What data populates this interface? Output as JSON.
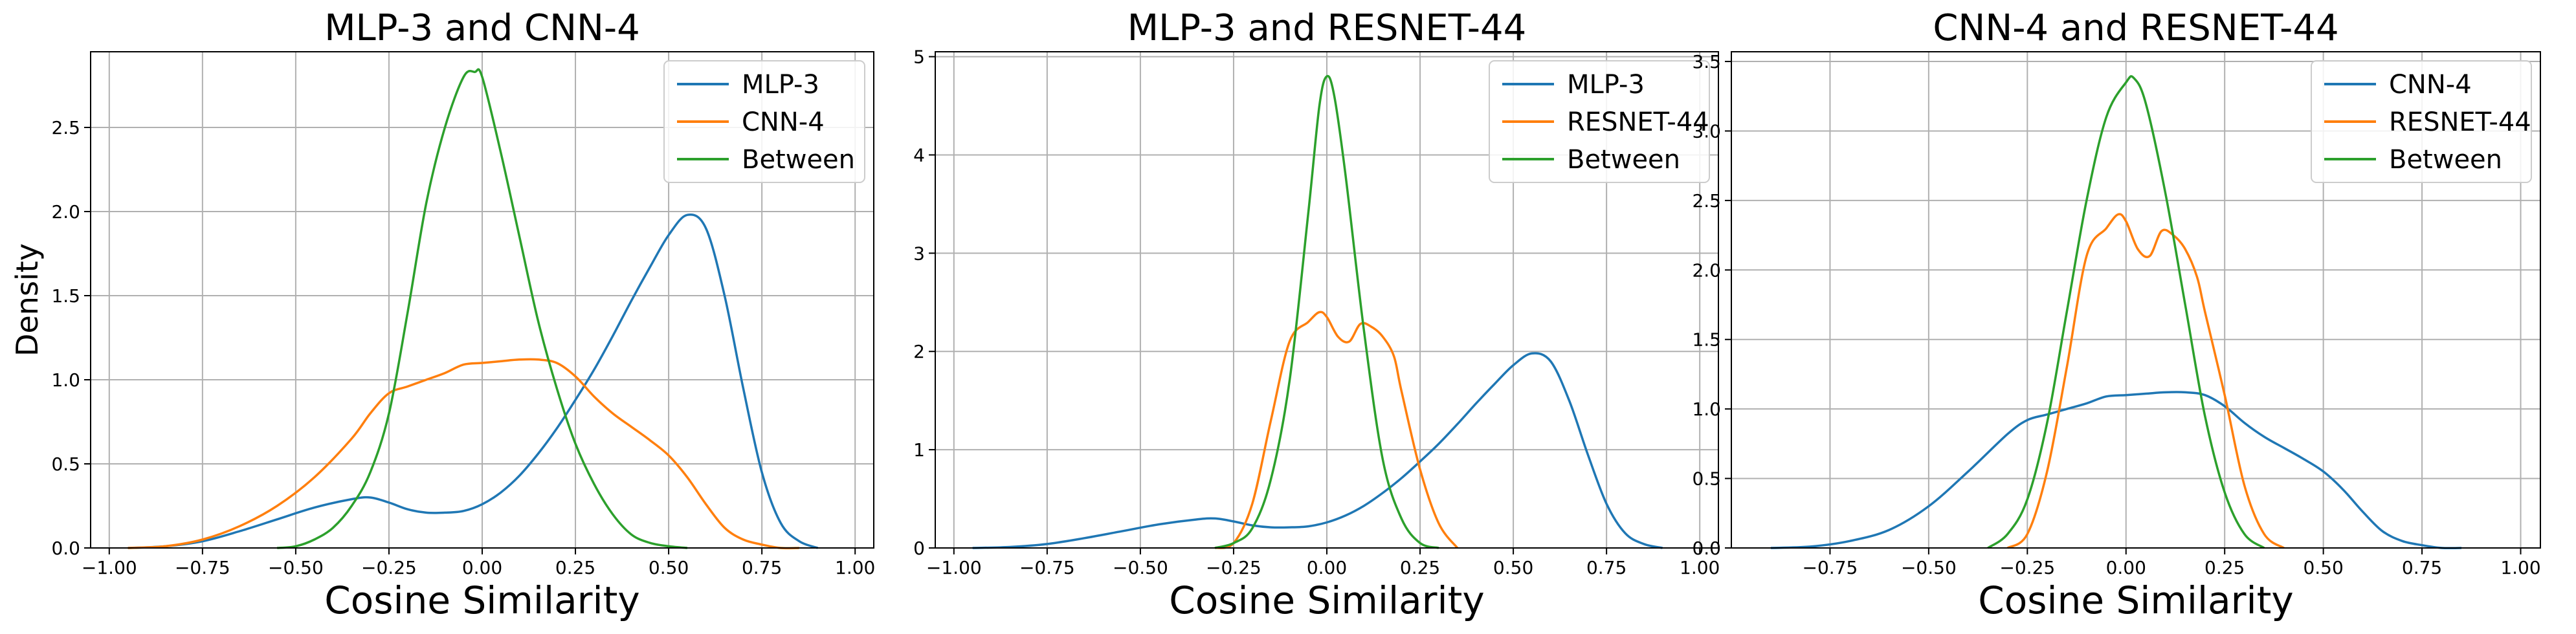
{
  "chart_data": [
    {
      "type": "line",
      "title": "MLP-3 and CNN-4",
      "xlabel": "Cosine Similarity",
      "ylabel": "Density",
      "xlim": [
        -1.05,
        1.05
      ],
      "ylim": [
        0,
        2.95
      ],
      "xticks": [
        -1.0,
        -0.75,
        -0.5,
        -0.25,
        0.0,
        0.25,
        0.5,
        0.75,
        1.0
      ],
      "xtick_labels": [
        "−1.00",
        "−0.75",
        "−0.50",
        "−0.25",
        "0.00",
        "0.25",
        "0.50",
        "0.75",
        "1.00"
      ],
      "yticks": [
        0,
        0.5,
        1.0,
        1.5,
        2.0,
        2.5
      ],
      "ytick_labels": [
        "0.0",
        "0.5",
        "1.0",
        "1.5",
        "2.0",
        "2.5"
      ],
      "grid": true,
      "legend_position": "top-right",
      "series": [
        {
          "name": "MLP-3",
          "color": "#1f77b4",
          "x": [
            -0.95,
            -0.85,
            -0.75,
            -0.65,
            -0.55,
            -0.45,
            -0.35,
            -0.3,
            -0.25,
            -0.2,
            -0.15,
            -0.1,
            -0.05,
            0.0,
            0.05,
            0.1,
            0.15,
            0.2,
            0.25,
            0.3,
            0.35,
            0.4,
            0.45,
            0.5,
            0.55,
            0.6,
            0.65,
            0.7,
            0.75,
            0.8,
            0.85,
            0.9
          ],
          "y": [
            0.0,
            0.01,
            0.04,
            0.1,
            0.17,
            0.24,
            0.29,
            0.3,
            0.27,
            0.23,
            0.21,
            0.21,
            0.22,
            0.26,
            0.33,
            0.43,
            0.56,
            0.71,
            0.88,
            1.06,
            1.26,
            1.47,
            1.67,
            1.86,
            1.98,
            1.9,
            1.5,
            0.95,
            0.45,
            0.15,
            0.04,
            0.0
          ]
        },
        {
          "name": "CNN-4",
          "color": "#ff7f0e",
          "x": [
            -0.95,
            -0.85,
            -0.75,
            -0.65,
            -0.55,
            -0.45,
            -0.35,
            -0.3,
            -0.25,
            -0.2,
            -0.15,
            -0.1,
            -0.05,
            0.0,
            0.05,
            0.1,
            0.15,
            0.2,
            0.25,
            0.3,
            0.35,
            0.4,
            0.45,
            0.5,
            0.55,
            0.6,
            0.65,
            0.7,
            0.75,
            0.8,
            0.85
          ],
          "y": [
            0.0,
            0.01,
            0.05,
            0.13,
            0.25,
            0.42,
            0.65,
            0.8,
            0.92,
            0.96,
            1.0,
            1.04,
            1.09,
            1.1,
            1.11,
            1.12,
            1.12,
            1.1,
            1.02,
            0.9,
            0.8,
            0.72,
            0.64,
            0.55,
            0.42,
            0.26,
            0.12,
            0.05,
            0.02,
            0.0,
            0.0
          ]
        },
        {
          "name": "Between",
          "color": "#2ca02c",
          "x": [
            -0.55,
            -0.5,
            -0.45,
            -0.4,
            -0.35,
            -0.3,
            -0.25,
            -0.2,
            -0.15,
            -0.1,
            -0.05,
            -0.02,
            0.0,
            0.05,
            0.1,
            0.15,
            0.2,
            0.25,
            0.3,
            0.35,
            0.4,
            0.45,
            0.5,
            0.55
          ],
          "y": [
            0.0,
            0.01,
            0.05,
            0.12,
            0.25,
            0.45,
            0.8,
            1.4,
            2.05,
            2.5,
            2.8,
            2.83,
            2.8,
            2.35,
            1.85,
            1.35,
            0.95,
            0.62,
            0.38,
            0.2,
            0.08,
            0.03,
            0.01,
            0.0
          ]
        }
      ]
    },
    {
      "type": "line",
      "title": "MLP-3 and RESNET-44",
      "xlabel": "Cosine Similarity",
      "ylabel": "",
      "xlim": [
        -1.05,
        1.05
      ],
      "ylim": [
        0,
        5.05
      ],
      "xticks": [
        -1.0,
        -0.75,
        -0.5,
        -0.25,
        0.0,
        0.25,
        0.5,
        0.75,
        1.0
      ],
      "xtick_labels": [
        "−1.00",
        "−0.75",
        "−0.50",
        "−0.25",
        "0.00",
        "0.25",
        "0.50",
        "0.75",
        "1.00"
      ],
      "yticks": [
        0,
        1,
        2,
        3,
        4,
        5
      ],
      "ytick_labels": [
        "0",
        "1",
        "2",
        "3",
        "4",
        "5"
      ],
      "grid": true,
      "legend_position": "top-right",
      "series": [
        {
          "name": "MLP-3",
          "color": "#1f77b4",
          "x": [
            -0.95,
            -0.85,
            -0.75,
            -0.65,
            -0.55,
            -0.45,
            -0.35,
            -0.3,
            -0.25,
            -0.2,
            -0.15,
            -0.1,
            -0.05,
            0.0,
            0.05,
            0.1,
            0.15,
            0.2,
            0.25,
            0.3,
            0.35,
            0.4,
            0.45,
            0.5,
            0.55,
            0.6,
            0.65,
            0.7,
            0.75,
            0.8,
            0.85,
            0.9
          ],
          "y": [
            0.0,
            0.01,
            0.04,
            0.1,
            0.17,
            0.24,
            0.29,
            0.3,
            0.27,
            0.23,
            0.21,
            0.21,
            0.22,
            0.26,
            0.33,
            0.43,
            0.56,
            0.71,
            0.88,
            1.06,
            1.26,
            1.47,
            1.67,
            1.86,
            1.98,
            1.9,
            1.5,
            0.95,
            0.45,
            0.15,
            0.04,
            0.0
          ]
        },
        {
          "name": "RESNET-44",
          "color": "#ff7f0e",
          "x": [
            -0.3,
            -0.25,
            -0.2,
            -0.15,
            -0.1,
            -0.05,
            -0.02,
            0.0,
            0.03,
            0.06,
            0.09,
            0.12,
            0.15,
            0.18,
            0.2,
            0.25,
            0.3,
            0.35
          ],
          "y": [
            0.0,
            0.05,
            0.45,
            1.3,
            2.1,
            2.3,
            2.4,
            2.35,
            2.15,
            2.1,
            2.28,
            2.25,
            2.15,
            1.95,
            1.6,
            0.8,
            0.25,
            0.0
          ]
        },
        {
          "name": "Between",
          "color": "#2ca02c",
          "x": [
            -0.3,
            -0.25,
            -0.2,
            -0.15,
            -0.1,
            -0.05,
            -0.02,
            0.0,
            0.02,
            0.05,
            0.1,
            0.15,
            0.2,
            0.25,
            0.3
          ],
          "y": [
            0.0,
            0.05,
            0.2,
            0.7,
            1.7,
            3.4,
            4.5,
            4.8,
            4.6,
            3.8,
            2.2,
            0.9,
            0.3,
            0.05,
            0.0
          ]
        }
      ]
    },
    {
      "type": "line",
      "title": "CNN-4 and RESNET-44",
      "xlabel": "Cosine Similarity",
      "ylabel": "",
      "xlim": [
        -1.0,
        1.05
      ],
      "ylim": [
        0,
        3.57
      ],
      "xticks": [
        -0.75,
        -0.5,
        -0.25,
        0.0,
        0.25,
        0.5,
        0.75,
        1.0
      ],
      "xtick_labels": [
        "−0.75",
        "−0.50",
        "−0.25",
        "0.00",
        "0.25",
        "0.50",
        "0.75",
        "1.00"
      ],
      "yticks": [
        0,
        0.5,
        1.0,
        1.5,
        2.0,
        2.5,
        3.0,
        3.5
      ],
      "ytick_labels": [
        "0.0",
        "0.5",
        "1.0",
        "1.5",
        "2.0",
        "2.5",
        "3.0",
        "3.5"
      ],
      "grid": true,
      "legend_position": "top-right",
      "series": [
        {
          "name": "CNN-4",
          "color": "#1f77b4",
          "x": [
            -0.9,
            -0.8,
            -0.7,
            -0.6,
            -0.5,
            -0.4,
            -0.3,
            -0.25,
            -0.2,
            -0.15,
            -0.1,
            -0.05,
            0.0,
            0.05,
            0.1,
            0.15,
            0.2,
            0.25,
            0.3,
            0.35,
            0.4,
            0.45,
            0.5,
            0.55,
            0.6,
            0.65,
            0.7,
            0.75,
            0.8,
            0.85
          ],
          "y": [
            0.0,
            0.01,
            0.05,
            0.13,
            0.3,
            0.55,
            0.82,
            0.92,
            0.96,
            1.0,
            1.04,
            1.09,
            1.1,
            1.11,
            1.12,
            1.12,
            1.1,
            1.02,
            0.9,
            0.8,
            0.72,
            0.64,
            0.55,
            0.42,
            0.26,
            0.12,
            0.05,
            0.02,
            0.0,
            0.0
          ]
        },
        {
          "name": "RESNET-44",
          "color": "#ff7f0e",
          "x": [
            -0.3,
            -0.25,
            -0.2,
            -0.15,
            -0.1,
            -0.05,
            -0.02,
            0.0,
            0.03,
            0.06,
            0.09,
            0.12,
            0.15,
            0.18,
            0.2,
            0.25,
            0.3,
            0.35,
            0.4
          ],
          "y": [
            0.0,
            0.1,
            0.55,
            1.3,
            2.1,
            2.3,
            2.4,
            2.35,
            2.15,
            2.1,
            2.28,
            2.25,
            2.15,
            1.95,
            1.7,
            1.1,
            0.45,
            0.1,
            0.0
          ]
        },
        {
          "name": "Between",
          "color": "#2ca02c",
          "x": [
            -0.35,
            -0.3,
            -0.25,
            -0.2,
            -0.15,
            -0.1,
            -0.05,
            0.0,
            0.02,
            0.05,
            0.1,
            0.15,
            0.2,
            0.25,
            0.3,
            0.35
          ],
          "y": [
            0.0,
            0.1,
            0.35,
            0.9,
            1.7,
            2.5,
            3.1,
            3.35,
            3.38,
            3.2,
            2.55,
            1.75,
            0.95,
            0.4,
            0.1,
            0.0
          ]
        }
      ]
    }
  ]
}
